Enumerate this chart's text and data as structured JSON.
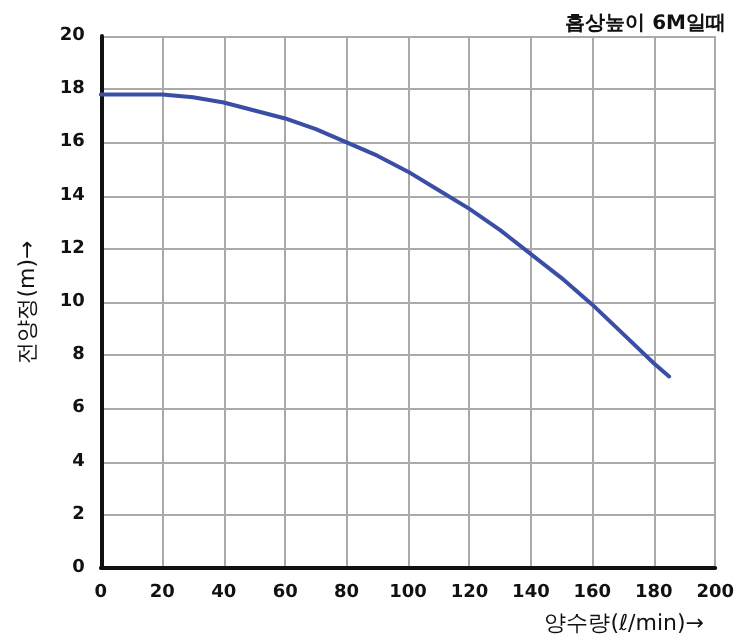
{
  "chart_data": {
    "type": "line",
    "title": "흡상높이 6M일때",
    "xlabel": "양수량(ℓ/min)→",
    "ylabel": "전양정(m)→",
    "x": [
      0,
      10,
      20,
      30,
      40,
      50,
      60,
      70,
      80,
      90,
      100,
      110,
      120,
      130,
      140,
      150,
      160,
      170,
      180,
      185
    ],
    "series": [
      {
        "color": "#3a4ea6",
        "values": [
          17.8,
          17.8,
          17.8,
          17.7,
          17.5,
          17.2,
          16.9,
          16.5,
          16.0,
          15.5,
          14.9,
          14.2,
          13.5,
          12.7,
          11.8,
          10.9,
          9.9,
          8.8,
          7.7,
          7.2
        ]
      }
    ],
    "xlim": [
      0,
      200
    ],
    "xticks": [
      0,
      20,
      40,
      60,
      80,
      100,
      120,
      140,
      160,
      180,
      200
    ],
    "ylim": [
      0,
      20
    ],
    "yticks": [
      0,
      2,
      4,
      6,
      8,
      10,
      12,
      14,
      16,
      18,
      20
    ],
    "grid": true,
    "legend": false,
    "marker": "none",
    "line_style": "solid"
  }
}
